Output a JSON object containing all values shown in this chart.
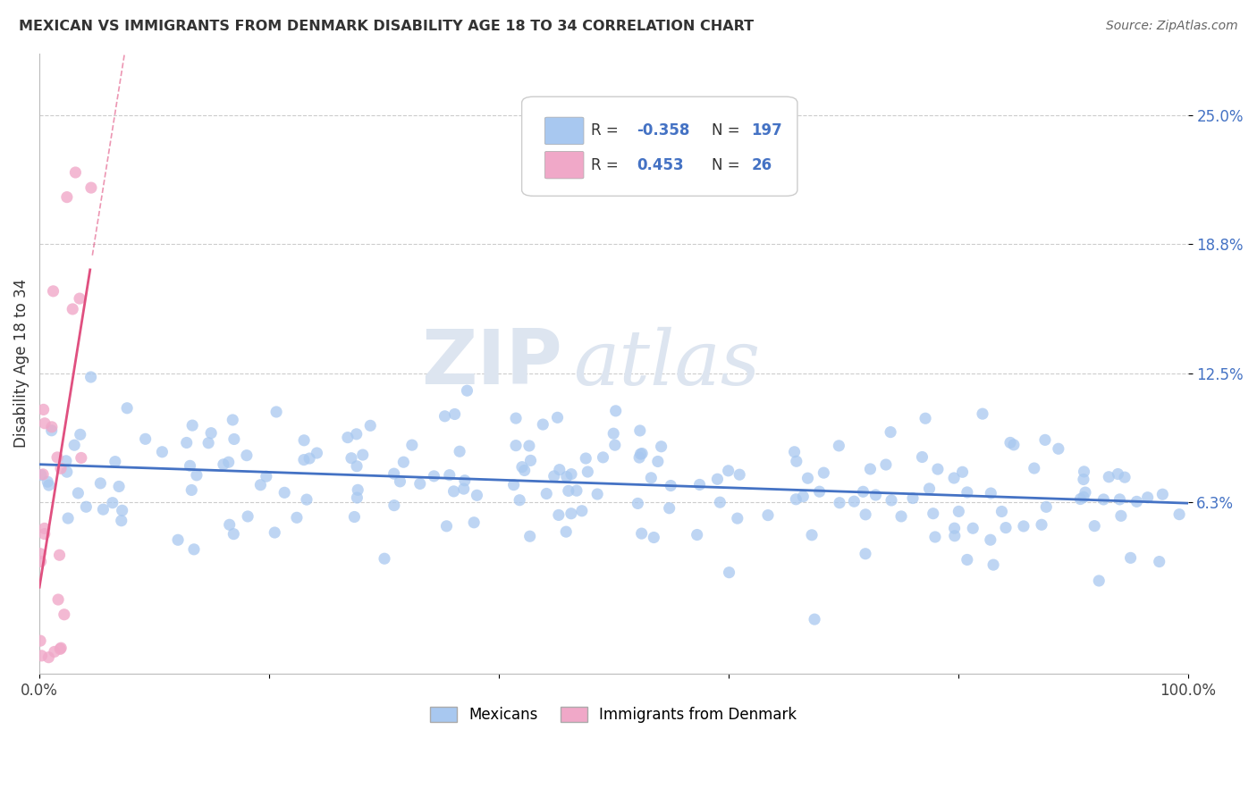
{
  "title": "MEXICAN VS IMMIGRANTS FROM DENMARK DISABILITY AGE 18 TO 34 CORRELATION CHART",
  "source": "Source: ZipAtlas.com",
  "ylabel": "Disability Age 18 to 34",
  "xlabel": "",
  "xlim": [
    0.0,
    1.0
  ],
  "ylim": [
    -0.02,
    0.28
  ],
  "yticks": [
    0.063,
    0.125,
    0.188,
    0.25
  ],
  "ytick_labels": [
    "6.3%",
    "12.5%",
    "18.8%",
    "25.0%"
  ],
  "blue_R": -0.358,
  "blue_N": 197,
  "pink_R": 0.453,
  "pink_N": 26,
  "blue_color": "#a8c8f0",
  "pink_color": "#f0a8c8",
  "blue_line_color": "#4472c4",
  "pink_line_color": "#e05080",
  "watermark_zip": "ZIP",
  "watermark_atlas": "atlas",
  "watermark_color": "#dde5f0",
  "background_color": "#ffffff",
  "grid_color": "#cccccc",
  "legend_border_color": "#cccccc",
  "legend_bg_color": "#ffffff"
}
